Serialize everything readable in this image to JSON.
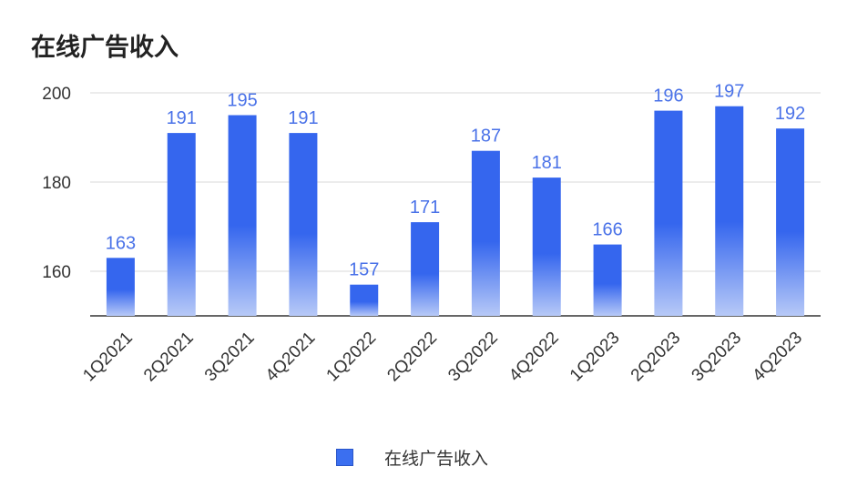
{
  "chart_data": {
    "type": "bar",
    "title": "在线广告收入",
    "categories": [
      "1Q2021",
      "2Q2021",
      "3Q2021",
      "4Q2021",
      "1Q2022",
      "2Q2022",
      "3Q2022",
      "4Q2022",
      "1Q2023",
      "2Q2023",
      "3Q2023",
      "4Q2023"
    ],
    "series": [
      {
        "name": "在线广告收入",
        "values": [
          163,
          191,
          195,
          191,
          157,
          171,
          187,
          181,
          166,
          196,
          197,
          192
        ]
      }
    ],
    "yticks": [
      160,
      180,
      200
    ],
    "ylim": [
      150,
      200
    ],
    "grid": true,
    "legend": "bottom",
    "colors": {
      "bar_top": "#3566ee",
      "bar_bottom": "#b7c9f7",
      "label": "#4a72e8"
    }
  }
}
